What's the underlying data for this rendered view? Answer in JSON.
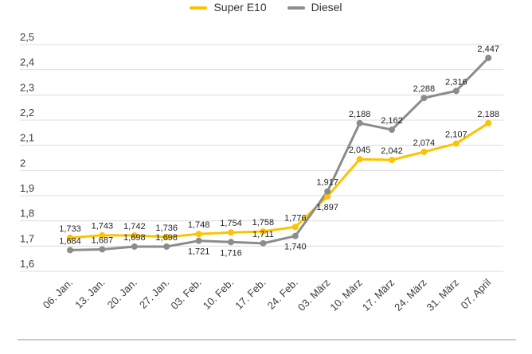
{
  "chart_data": {
    "type": "line",
    "title": "",
    "xlabel": "",
    "ylabel": "",
    "legend_position": "top",
    "grid": "horizontal",
    "categories": [
      "06. Jan.",
      "13. Jan.",
      "20. Jan.",
      "27. Jan.",
      "03. Feb.",
      "10. Feb.",
      "17. Feb.",
      "24. Feb.",
      "03. März",
      "10. März",
      "17. März",
      "24. März",
      "31. März",
      "07. April"
    ],
    "series": [
      {
        "name": "Super E10",
        "color": "#FDC300",
        "values": [
          1.733,
          1.743,
          1.742,
          1.736,
          1.748,
          1.754,
          1.758,
          1.776,
          1.897,
          2.045,
          2.042,
          2.074,
          2.107,
          2.188
        ],
        "labels": [
          "1,733",
          "1,743",
          "1,742",
          "1,736",
          "1,748",
          "1,754",
          "1,758",
          "1,776",
          "1,897",
          "2,045",
          "2,042",
          "2,074",
          "2,107",
          "2,188"
        ],
        "label_side": [
          "above",
          "above",
          "above",
          "above",
          "above",
          "above",
          "above",
          "above",
          "below",
          "above",
          "above",
          "above",
          "above",
          "above"
        ]
      },
      {
        "name": "Diesel",
        "color": "#8C8C8C",
        "values": [
          1.684,
          1.687,
          1.698,
          1.698,
          1.721,
          1.716,
          1.711,
          1.74,
          1.917,
          2.188,
          2.162,
          2.288,
          2.316,
          2.447
        ],
        "labels": [
          "1,684",
          "1,687",
          "1,698",
          "1,698",
          "1,721",
          "1,716",
          "1,711",
          "1,740",
          "1,917",
          "2,188",
          "2,162",
          "2,288",
          "2,316",
          "2,447"
        ],
        "label_side": [
          "above",
          "above",
          "above",
          "above",
          "below",
          "below",
          "above",
          "below",
          "above",
          "above",
          "above",
          "above",
          "above",
          "above"
        ]
      }
    ],
    "ylim": [
      1.6,
      2.5
    ],
    "ytick_values": [
      2.5,
      2.4,
      2.3,
      2.2,
      2.1,
      2.0,
      1.9,
      1.8,
      1.7,
      1.6
    ],
    "ytick_labels": [
      "2,5",
      "2,4",
      "2,3",
      "2,2",
      "2,1",
      "2",
      "1,9",
      "1,8",
      "1,7",
      "1,6"
    ],
    "colors": {
      "grid": "#DCDCDC",
      "tick_text": "#3C3C3C",
      "label_text": "#1F1F1F",
      "divider": "#C9C9C9"
    }
  }
}
